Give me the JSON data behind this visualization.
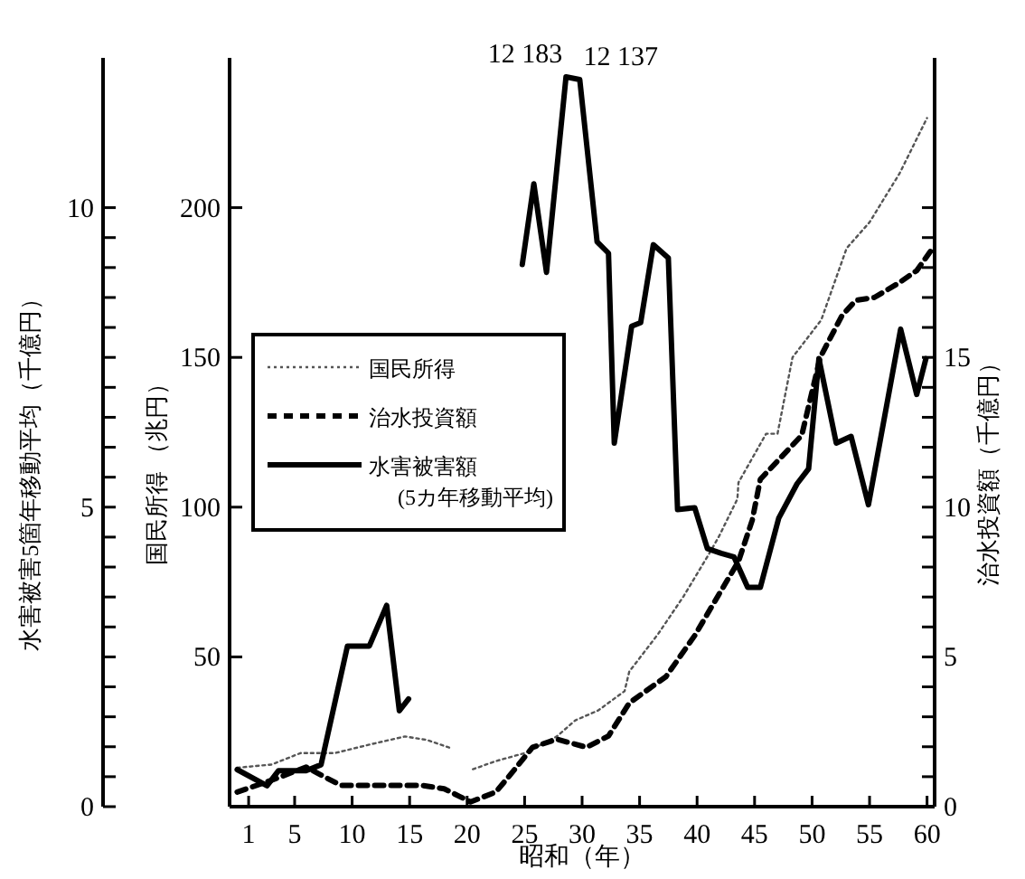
{
  "chart_data": {
    "type": "line",
    "xlabel": "昭和（年）",
    "ylabel": "水害被害5箇年移動平均（千億円）",
    "y3label": "国民所得 （兆円）",
    "y2label": "治水投資額（千億円）",
    "xlim": [
      -0.5,
      60.5
    ],
    "xticks": [
      1,
      5,
      10,
      15,
      20,
      25,
      30,
      35,
      40,
      45,
      50,
      55,
      60
    ],
    "ylim": [
      0,
      12.5
    ],
    "yticks": [
      0,
      {
        "value": 0.5,
        "label": null
      },
      {
        "value": 1,
        "label": null
      },
      {
        "value": 1.5,
        "label": null
      },
      {
        "value": 2,
        "label": null
      },
      {
        "value": 2.5,
        "label": null
      },
      {
        "value": 3,
        "label": null
      },
      {
        "value": 3.5,
        "label": null
      },
      {
        "value": 4,
        "label": null
      },
      {
        "value": 4.5,
        "label": null
      },
      5,
      {
        "value": 5.5,
        "label": null
      },
      {
        "value": 6,
        "label": null
      },
      {
        "value": 6.5,
        "label": null
      },
      {
        "value": 7,
        "label": null
      },
      {
        "value": 7.5,
        "label": null
      },
      {
        "value": 8,
        "label": null
      },
      {
        "value": 8.5,
        "label": null
      },
      {
        "value": 9,
        "label": null
      },
      {
        "value": 9.5,
        "label": null
      },
      10
    ],
    "y3lim": [
      0,
      250
    ],
    "y3ticks": [
      50,
      100,
      150,
      200
    ],
    "y2lim": [
      0,
      25
    ],
    "y2ticks": [
      0,
      {
        "value": 1,
        "label": null
      },
      {
        "value": 2,
        "label": null
      },
      {
        "value": 3,
        "label": null
      },
      {
        "value": 4,
        "label": null
      },
      5,
      {
        "value": 6,
        "label": null
      },
      {
        "value": 7,
        "label": null
      },
      {
        "value": 8,
        "label": null
      },
      {
        "value": 9,
        "label": null
      },
      10,
      {
        "value": 11,
        "label": null
      },
      {
        "value": 12,
        "label": null
      },
      {
        "value": 13,
        "label": null
      },
      {
        "value": 14,
        "label": null
      },
      15,
      {
        "value": 16,
        "label": null
      },
      {
        "value": 17,
        "label": null
      },
      {
        "value": 18,
        "label": null
      },
      {
        "value": 19,
        "label": null
      },
      {
        "value": 20,
        "label": null
      }
    ],
    "legend": "left",
    "grid": false,
    "marker": "none",
    "series": [
      {
        "name": "国民所得",
        "color": "#555555",
        "line_style": "dotted",
        "axis": "y3",
        "x": [
          0,
          3,
          5.5,
          8.5,
          11.5,
          14.6,
          16.5,
          18.5,
          19.5,
          20.5,
          22.5,
          25,
          27.8,
          29.4,
          31.4,
          33.7,
          34.1,
          36.6,
          38.8,
          41.1,
          41.9,
          43.5,
          43.6,
          46,
          47,
          48.3,
          50.8,
          53,
          55,
          57.6,
          60
        ],
        "values": [
          13.0,
          14.1,
          17.9,
          17.9,
          20.7,
          23.4,
          22.3,
          19.6,
          null,
          12.5,
          15.2,
          17.9,
          23.4,
          28.8,
          32.1,
          38.6,
          45.1,
          57.6,
          70.1,
          84.8,
          90.2,
          102.7,
          108.2,
          124.5,
          124.5,
          150,
          162.5,
          186.4,
          195.1,
          211.4,
          229.9
        ]
      },
      {
        "name": "治水投資額",
        "color": "#000000",
        "line_style": "dashed",
        "axis": "y2",
        "x": [
          0,
          3,
          6,
          9,
          12,
          16,
          18,
          20.3,
          22.5,
          23.7,
          25.7,
          27.8,
          30.4,
          32.3,
          34.1,
          37.3,
          39.8,
          41.9,
          43.6,
          44.8,
          45.5,
          49.1,
          50.7,
          52.6,
          53.8,
          55.4,
          57.6,
          59.1,
          60.4
        ],
        "values": [
          0.49,
          0.88,
          1.32,
          0.71,
          0.71,
          0.71,
          0.6,
          0.16,
          0.49,
          1.04,
          1.98,
          2.25,
          1.98,
          2.36,
          3.46,
          4.34,
          5.71,
          7.09,
          8.19,
          9.56,
          10.93,
          12.4,
          15.0,
          16.4,
          16.9,
          17.0,
          17.5,
          17.9,
          18.6
        ]
      },
      {
        "name": "水害被害額 (5カ年移動平均)",
        "color": "#000000",
        "line_style": "solid",
        "axis": "y",
        "x": [
          0,
          2.6,
          3.6,
          6,
          7.3,
          9.6,
          11.5,
          13,
          14.1,
          14.9,
          20,
          24.8,
          25.8,
          26.9,
          28.6,
          29.8,
          31.3,
          32.3,
          32.8,
          34.3,
          35.1,
          36.2,
          37.5,
          38.3,
          39.8,
          40.9,
          42.1,
          43.2,
          44.4,
          45.5,
          47.1,
          48.7,
          49.7,
          50.6,
          52.1,
          53.4,
          54.9,
          57.7,
          59.1,
          59.9
        ],
        "values": [
          0.62,
          0.35,
          0.6,
          0.6,
          0.7,
          2.68,
          2.68,
          3.36,
          1.6,
          1.8,
          null,
          9.05,
          10.4,
          8.92,
          12.183,
          12.137,
          9.43,
          9.24,
          6.07,
          8.02,
          8.08,
          9.38,
          9.16,
          4.96,
          4.99,
          4.31,
          4.23,
          4.17,
          3.66,
          3.66,
          4.82,
          5.39,
          5.64,
          7.48,
          6.07,
          6.18,
          5.04,
          7.97,
          6.88,
          7.48
        ]
      }
    ],
    "annotations": [
      {
        "text": "12 183",
        "x": 28.6,
        "y": 12.183
      },
      {
        "text": "12 137",
        "x": 29.8,
        "y": 12.137
      }
    ]
  }
}
